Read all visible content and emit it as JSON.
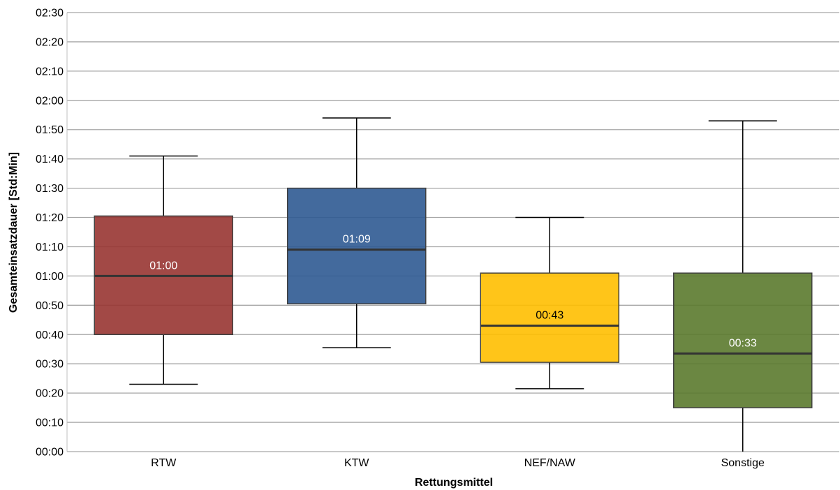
{
  "chart_data": {
    "type": "boxplot",
    "xlabel": "Rettungsmittel",
    "ylabel": "Gesamteinsatzdauer [Std:Min]",
    "ylim_minutes": [
      0,
      150
    ],
    "y_ticks": [
      "00:00",
      "00:10",
      "00:20",
      "00:30",
      "00:40",
      "00:50",
      "01:00",
      "01:10",
      "01:20",
      "01:30",
      "01:40",
      "01:50",
      "02:00",
      "02:10",
      "02:20",
      "02:30"
    ],
    "grid": true,
    "boxes": [
      {
        "category": "RTW",
        "whisker_low": 23,
        "q1": 40,
        "median": 60,
        "q3": 80.5,
        "whisker_high": 101,
        "median_label": "01:00",
        "color": "#983532"
      },
      {
        "category": "KTW",
        "whisker_low": 35.5,
        "q1": 50.5,
        "median": 69,
        "q3": 90,
        "whisker_high": 114,
        "median_label": "01:09",
        "color": "#2f5a92"
      },
      {
        "category": "NEF/NAW",
        "whisker_low": 21.5,
        "q1": 30.5,
        "median": 43,
        "q3": 61,
        "whisker_high": 80,
        "median_label": "00:43",
        "color": "#ffbf00"
      },
      {
        "category": "Sonstige",
        "whisker_low": 0,
        "q1": 15,
        "median": 33.5,
        "q3": 61,
        "whisker_high": 113,
        "median_label": "00:33",
        "color": "#5b7a2e"
      }
    ]
  }
}
